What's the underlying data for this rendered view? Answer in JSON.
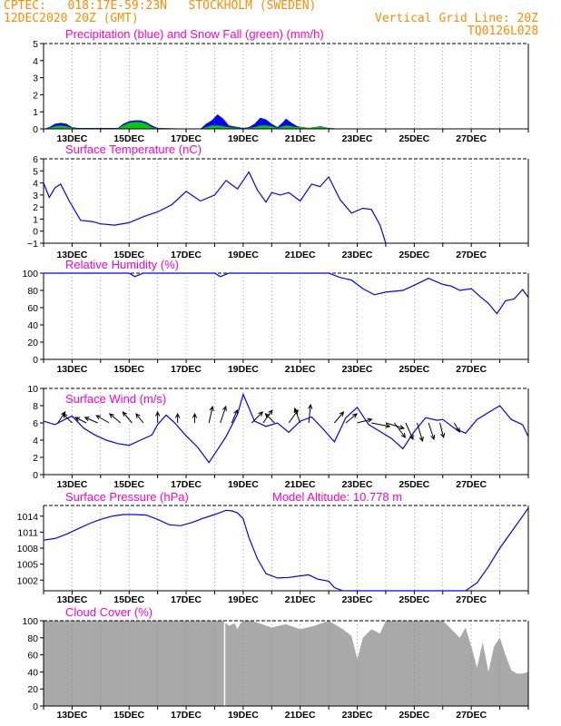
{
  "header": {
    "line1_left": "CPTEC:   018:17E-59:23N   STOCKHOLM (SWEDEN)",
    "line2_left": "12DEC2020 20Z (GMT)",
    "vgrid": "Vertical Grid Line: 20Z",
    "code": "TQ0126L028"
  },
  "colors": {
    "title": "#ff00c8",
    "header": "#ff8c00",
    "line": "#0000ff",
    "snow": "#00cc00",
    "cloud": "#a9a9a9",
    "wind_arrow": "#000000"
  },
  "chart_data": [
    {
      "type": "area",
      "title": "Precipitation (blue) and Snow Fall (green) (mm/h)",
      "xlabel": "",
      "ylabel": "",
      "categories": [
        "13DEC",
        "15DEC",
        "17DEC",
        "19DEC",
        "21DEC",
        "23DEC",
        "25DEC",
        "27DEC"
      ],
      "yticks": [
        "0",
        "1",
        "2",
        "3",
        "4",
        "5"
      ],
      "ylim": [
        0,
        5
      ],
      "x": [
        0.0,
        0.2,
        0.4,
        0.6,
        0.8,
        1.0,
        1.2,
        2.6,
        2.8,
        3.0,
        3.2,
        3.4,
        3.6,
        3.8,
        4.0,
        5.5,
        5.7,
        5.9,
        6.1,
        6.3,
        6.5,
        7.0,
        7.2,
        7.4,
        7.6,
        7.8,
        8.0,
        8.2,
        8.4,
        8.5,
        8.7,
        8.9,
        9.1,
        9.3,
        9.5,
        9.7,
        10.0,
        10.5,
        11.0,
        12.0,
        13.0,
        14.0,
        14.3,
        14.6,
        15.0
      ],
      "series": [
        {
          "name": "Precipitation",
          "values": [
            0.0,
            0.1,
            0.3,
            0.35,
            0.3,
            0.1,
            0.05,
            0.05,
            0.3,
            0.45,
            0.5,
            0.5,
            0.4,
            0.2,
            0.05,
            0.0,
            0.3,
            0.5,
            0.85,
            0.6,
            0.2,
            0.05,
            0.1,
            0.3,
            0.65,
            0.55,
            0.3,
            0.1,
            0.4,
            0.6,
            0.35,
            0.15,
            0.1,
            0.05,
            0.1,
            0.15,
            0.05,
            0.0,
            0.0,
            0.0,
            0.0,
            0.0,
            0.0,
            0.0,
            0.0
          ]
        },
        {
          "name": "Snow Fall",
          "values": [
            0.0,
            0.05,
            0.15,
            0.2,
            0.15,
            0.05,
            0.03,
            0.03,
            0.2,
            0.35,
            0.4,
            0.4,
            0.3,
            0.1,
            0.03,
            0.0,
            0.1,
            0.2,
            0.2,
            0.15,
            0.1,
            0.03,
            0.05,
            0.1,
            0.2,
            0.2,
            0.15,
            0.05,
            0.15,
            0.2,
            0.15,
            0.1,
            0.1,
            0.05,
            0.1,
            0.12,
            0.05,
            0.0,
            0.0,
            0.0,
            0.0,
            0.0,
            0.0,
            0.0,
            0.0
          ]
        }
      ]
    },
    {
      "type": "line",
      "title": "Surface Temperature (nC)",
      "xlabel": "",
      "ylabel": "",
      "categories": [
        "13DEC",
        "15DEC",
        "17DEC",
        "19DEC",
        "21DEC",
        "23DEC",
        "25DEC",
        "27DEC"
      ],
      "yticks": [
        "−1",
        "0",
        "1",
        "2",
        "3",
        "4",
        "5",
        "6"
      ],
      "ylim": [
        -1,
        6
      ],
      "x": [
        0.0,
        0.2,
        0.4,
        0.6,
        0.9,
        1.3,
        1.7,
        2.0,
        2.5,
        3.0,
        3.5,
        4.0,
        4.5,
        5.0,
        5.5,
        6.0,
        6.4,
        6.8,
        7.2,
        7.5,
        7.8,
        8.0,
        8.3,
        8.6,
        9.0,
        9.4,
        9.7,
        10.0,
        10.4,
        10.8,
        11.2,
        11.5,
        11.8,
        12.0
      ],
      "values": [
        4.0,
        2.8,
        3.6,
        3.9,
        2.5,
        0.9,
        0.8,
        0.6,
        0.5,
        0.7,
        1.2,
        1.6,
        2.2,
        3.3,
        2.5,
        3.0,
        4.2,
        3.5,
        4.9,
        3.4,
        2.4,
        3.2,
        3.0,
        3.2,
        2.5,
        3.9,
        3.7,
        4.5,
        2.6,
        1.5,
        1.9,
        1.8,
        0.5,
        -1.0
      ]
    },
    {
      "type": "line",
      "title": "Relative Humidity (%)",
      "xlabel": "",
      "ylabel": "",
      "categories": [
        "13DEC",
        "15DEC",
        "17DEC",
        "19DEC",
        "21DEC",
        "23DEC",
        "25DEC",
        "27DEC"
      ],
      "yticks": [
        "0",
        "20",
        "40",
        "60",
        "80",
        "100"
      ],
      "ylim": [
        0,
        100
      ],
      "x": [
        0.0,
        3.0,
        3.2,
        3.5,
        3.8,
        5.0,
        6.0,
        6.2,
        6.5,
        7.0,
        10.0,
        10.4,
        10.8,
        11.2,
        11.6,
        12.0,
        12.6,
        13.0,
        13.5,
        14.0,
        14.3,
        14.6,
        15.0,
        15.3,
        15.6,
        15.9,
        16.2,
        16.5,
        16.8,
        17.0
      ],
      "values": [
        100,
        100,
        96,
        100,
        100,
        100,
        100,
        96,
        100,
        100,
        100,
        95,
        92,
        82,
        75,
        78,
        80,
        86,
        94,
        87,
        85,
        80,
        82,
        73,
        65,
        53,
        68,
        70,
        81,
        72
      ]
    },
    {
      "type": "line",
      "title": "Surface Wind (m/s)",
      "xlabel": "",
      "ylabel": "",
      "categories": [
        "13DEC",
        "15DEC",
        "17DEC",
        "19DEC",
        "21DEC",
        "23DEC",
        "25DEC",
        "27DEC"
      ],
      "yticks": [
        "0",
        "2",
        "4",
        "6",
        "8",
        "10"
      ],
      "ylim": [
        0,
        10
      ],
      "x": [
        0.0,
        0.4,
        0.8,
        1.0,
        1.4,
        1.8,
        2.2,
        2.6,
        3.0,
        3.4,
        3.8,
        4.0,
        4.3,
        4.6,
        5.0,
        5.4,
        5.8,
        6.0,
        6.4,
        6.8,
        7.0,
        7.4,
        7.8,
        8.2,
        8.6,
        9.0,
        9.4,
        9.8,
        10.2,
        10.6,
        11.0,
        11.4,
        11.8,
        12.2,
        12.6,
        13.0,
        13.4,
        13.8,
        14.0,
        14.4,
        14.8,
        15.2,
        15.6,
        16.0,
        16.4,
        16.8,
        17.0
      ],
      "values": [
        6.2,
        5.8,
        6.5,
        6.8,
        5.4,
        4.6,
        4.0,
        3.6,
        3.4,
        4.0,
        4.6,
        5.8,
        6.9,
        6.0,
        4.5,
        3.2,
        1.4,
        2.4,
        4.4,
        7.0,
        9.3,
        6.2,
        5.6,
        6.0,
        4.9,
        6.2,
        6.7,
        5.3,
        3.8,
        6.6,
        7.8,
        5.8,
        5.0,
        4.2,
        3.0,
        5.0,
        6.6,
        6.3,
        6.4,
        5.4,
        4.8,
        6.4,
        7.2,
        8.0,
        6.4,
        5.8,
        4.4
      ],
      "wind_vectors": [
        {
          "day": 0.5,
          "u": 0.4,
          "v": 0.6
        },
        {
          "day": 1.0,
          "u": -0.5,
          "v": 0.5
        },
        {
          "day": 1.5,
          "u": -0.6,
          "v": 0.3
        },
        {
          "day": 1.9,
          "u": -0.7,
          "v": 0.3
        },
        {
          "day": 2.3,
          "u": -0.7,
          "v": 0.4
        },
        {
          "day": 2.7,
          "u": -0.6,
          "v": 0.5
        },
        {
          "day": 3.1,
          "u": -0.5,
          "v": 0.6
        },
        {
          "day": 3.5,
          "u": -0.4,
          "v": 0.5
        },
        {
          "day": 4.0,
          "u": 0.0,
          "v": 0.6
        },
        {
          "day": 4.7,
          "u": 0.0,
          "v": 0.5
        },
        {
          "day": 5.3,
          "u": 0.0,
          "v": 0.5
        },
        {
          "day": 5.8,
          "u": 0.2,
          "v": 0.9
        },
        {
          "day": 6.2,
          "u": 0.3,
          "v": 0.9
        },
        {
          "day": 6.6,
          "u": 0.3,
          "v": 0.7
        },
        {
          "day": 7.3,
          "u": 0.6,
          "v": 0.6
        },
        {
          "day": 7.7,
          "u": 0.5,
          "v": 0.7
        },
        {
          "day": 8.1,
          "u": -0.5,
          "v": 0.5
        },
        {
          "day": 8.6,
          "u": 0.5,
          "v": 0.7
        },
        {
          "day": 9.0,
          "u": -0.3,
          "v": 0.8
        },
        {
          "day": 9.3,
          "u": 0.1,
          "v": 1.0
        },
        {
          "day": 10.2,
          "u": 0.5,
          "v": 0.6
        },
        {
          "day": 10.6,
          "u": 0.6,
          "v": 0.5
        },
        {
          "day": 11.0,
          "u": 0.8,
          "v": 0.2
        },
        {
          "day": 11.5,
          "u": 1.0,
          "v": -0.2
        },
        {
          "day": 12.0,
          "u": 1.0,
          "v": -0.3
        },
        {
          "day": 12.3,
          "u": 0.6,
          "v": -0.8
        },
        {
          "day": 12.7,
          "u": 0.4,
          "v": -0.9
        },
        {
          "day": 13.1,
          "u": 0.3,
          "v": -1.0
        },
        {
          "day": 13.5,
          "u": 0.3,
          "v": -0.9
        },
        {
          "day": 13.9,
          "u": 0.2,
          "v": -0.8
        },
        {
          "day": 14.4,
          "u": 0.3,
          "v": -0.5
        }
      ]
    },
    {
      "type": "line",
      "title": "Surface Pressure (hPa)",
      "annotation": "Model Altitude: 10.778 m",
      "xlabel": "",
      "ylabel": "",
      "categories": [
        "13DEC",
        "15DEC",
        "17DEC",
        "19DEC",
        "21DEC",
        "23DEC",
        "25DEC",
        "27DEC"
      ],
      "yticks": [
        "1002",
        "1005",
        "1008",
        "1011",
        "1014"
      ],
      "ylim": [
        1000,
        1016
      ],
      "x": [
        0.0,
        0.4,
        0.8,
        1.2,
        1.6,
        2.0,
        2.4,
        2.8,
        3.2,
        3.6,
        4.0,
        4.4,
        4.8,
        5.2,
        5.6,
        6.0,
        6.4,
        6.6,
        6.8,
        7.0,
        7.2,
        7.5,
        7.8,
        8.2,
        8.6,
        9.0,
        9.3,
        9.6,
        10.0,
        10.2,
        10.5,
        14.8,
        15.2,
        15.6,
        16.0,
        16.4,
        16.8,
        17.0
      ],
      "values": [
        1009.5,
        1009.8,
        1010.6,
        1011.6,
        1012.6,
        1013.4,
        1014.0,
        1014.3,
        1014.3,
        1014.2,
        1013.4,
        1012.4,
        1012.2,
        1012.8,
        1013.6,
        1014.3,
        1015.1,
        1015.0,
        1014.6,
        1013.5,
        1010.0,
        1006.0,
        1003.2,
        1002.4,
        1002.5,
        1002.8,
        1003.0,
        1002.2,
        1001.8,
        1000.6,
        1000.0,
        1000.0,
        1001.5,
        1004.5,
        1008.0,
        1011.0,
        1014.0,
        1015.5
      ]
    },
    {
      "type": "area",
      "title": "Cloud Cover (%)",
      "xlabel": "",
      "ylabel": "",
      "categories": [
        "13DEC",
        "15DEC",
        "17DEC",
        "19DEC",
        "21DEC",
        "23DEC",
        "25DEC",
        "27DEC"
      ],
      "yticks": [
        "0",
        "20",
        "40",
        "60",
        "80",
        "100"
      ],
      "ylim": [
        0,
        100
      ],
      "x": [
        0.0,
        6.3,
        6.5,
        6.7,
        6.8,
        6.9,
        7.0,
        7.2,
        7.3,
        8.0,
        8.5,
        9.0,
        9.5,
        10.0,
        10.2,
        10.5,
        10.8,
        11.0,
        11.2,
        11.5,
        11.8,
        12.0,
        14.0,
        14.3,
        14.6,
        14.8,
        15.0,
        15.2,
        15.4,
        15.6,
        15.8,
        16.0,
        16.2,
        16.4,
        16.6,
        16.8,
        17.0
      ],
      "values": [
        100,
        100,
        94,
        97,
        90,
        97,
        100,
        100,
        100,
        92,
        96,
        90,
        94,
        100,
        96,
        90,
        82,
        55,
        80,
        90,
        85,
        100,
        100,
        90,
        80,
        92,
        70,
        45,
        75,
        40,
        70,
        80,
        60,
        42,
        38,
        38,
        40
      ]
    }
  ]
}
